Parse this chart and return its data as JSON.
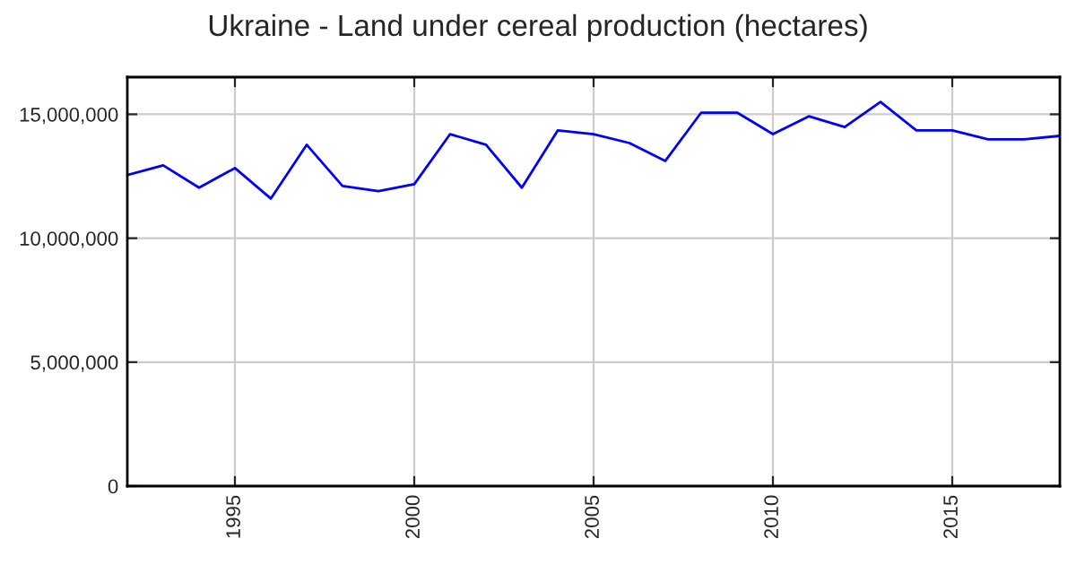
{
  "chart_data": {
    "type": "line",
    "title": "Ukraine - Land under cereal production (hectares)",
    "x": [
      1992,
      1993,
      1994,
      1995,
      1996,
      1997,
      1998,
      1999,
      2000,
      2001,
      2002,
      2003,
      2004,
      2005,
      2006,
      2007,
      2008,
      2009,
      2010,
      2011,
      2012,
      2013,
      2014,
      2015,
      2016,
      2017,
      2018
    ],
    "series": [
      {
        "color": "#0000ff",
        "values": [
          12550000,
          12940000,
          12040000,
          12830000,
          11600000,
          13770000,
          12110000,
          11900000,
          12180000,
          14200000,
          13770000,
          12040000,
          14350000,
          14200000,
          13840000,
          13120000,
          15070000,
          15070000,
          14200000,
          14920000,
          14490000,
          15500000,
          14350000,
          14350000,
          13990000,
          13990000,
          14130000
        ]
      }
    ],
    "xlim": [
      1992,
      2018
    ],
    "xticks": [
      1995,
      2000,
      2005,
      2010,
      2015
    ],
    "ylim": [
      0,
      16500000
    ],
    "yticks": [
      {
        "value": 0,
        "label": "0"
      },
      {
        "value": 5000000,
        "label": "5,000,000"
      },
      {
        "value": 10000000,
        "label": "10,000,000"
      },
      {
        "value": 15000000,
        "label": "15,000,000"
      }
    ],
    "grid": true,
    "marker": "none",
    "line_style": "solid"
  }
}
